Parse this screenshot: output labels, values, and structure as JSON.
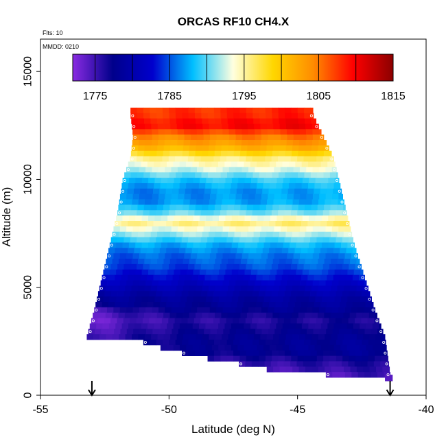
{
  "chart_data": {
    "type": "heatmap",
    "title": "ORCAS RF10 CH4.X",
    "xlabel": "Latitude (deg N)",
    "ylabel": "Altitude (m)",
    "xlim": [
      -55,
      -40
    ],
    "ylim": [
      0,
      16500
    ],
    "x_ticks": [
      -55,
      -50,
      -45,
      -40
    ],
    "y_ticks": [
      0,
      5000,
      10000,
      15000
    ],
    "annotations": {
      "flights": "Flts: 10",
      "date": "MMDD: 0210"
    },
    "colorbar": {
      "range": [
        1772,
        1815
      ],
      "tick_values": [
        1775,
        1785,
        1795,
        1805,
        1815
      ],
      "colors": [
        "#8a2be2",
        "#00008b",
        "#0000cd",
        "#00bfff",
        "#ffffe0",
        "#ffd700",
        "#ff8c00",
        "#ff0000",
        "#8b0000"
      ]
    },
    "flight_markers_latitude": [
      -53,
      -41.4
    ],
    "coverage": {
      "top_altitude": 13200,
      "bottom_altitude": 800,
      "left_edge": [
        [
          13000,
          -51.5
        ],
        [
          12000,
          -51.4
        ],
        [
          11000,
          -51.5
        ],
        [
          10000,
          -51.8
        ],
        [
          8500,
          -52.0
        ],
        [
          7000,
          -52.3
        ],
        [
          5500,
          -52.6
        ],
        [
          4000,
          -52.9
        ],
        [
          2700,
          -53.2
        ]
      ],
      "right_edge": [
        [
          13000,
          -44.4
        ],
        [
          12000,
          -44.0
        ],
        [
          11000,
          -43.6
        ],
        [
          10000,
          -43.4
        ],
        [
          8500,
          -43.1
        ],
        [
          7000,
          -42.8
        ],
        [
          5500,
          -42.4
        ],
        [
          4000,
          -42.0
        ],
        [
          2700,
          -41.6
        ],
        [
          1000,
          -41.4
        ]
      ],
      "bottom_left": [
        [
          2400,
          -51.0
        ],
        [
          1800,
          -49.0
        ],
        [
          1500,
          -47.5
        ],
        [
          1200,
          -46.2
        ],
        [
          1000,
          -44.2
        ],
        [
          800,
          -43.0
        ]
      ]
    },
    "ch4_profile": [
      {
        "altitude": 13000,
        "value": 1808
      },
      {
        "altitude": 12500,
        "value": 1810
      },
      {
        "altitude": 12000,
        "value": 1805
      },
      {
        "altitude": 11500,
        "value": 1802
      },
      {
        "altitude": 11000,
        "value": 1796
      },
      {
        "altitude": 10500,
        "value": 1793
      },
      {
        "altitude": 10000,
        "value": 1789
      },
      {
        "altitude": 9500,
        "value": 1787
      },
      {
        "altitude": 9000,
        "value": 1787
      },
      {
        "altitude": 8500,
        "value": 1790
      },
      {
        "altitude": 8000,
        "value": 1796
      },
      {
        "altitude": 7500,
        "value": 1792
      },
      {
        "altitude": 7000,
        "value": 1788
      },
      {
        "altitude": 6500,
        "value": 1786
      },
      {
        "altitude": 6000,
        "value": 1785
      },
      {
        "altitude": 5500,
        "value": 1783
      },
      {
        "altitude": 5000,
        "value": 1781
      },
      {
        "altitude": 4500,
        "value": 1779
      },
      {
        "altitude": 4000,
        "value": 1778
      },
      {
        "altitude": 3500,
        "value": 1776
      },
      {
        "altitude": 3000,
        "value": 1777
      },
      {
        "altitude": 2500,
        "value": 1778
      },
      {
        "altitude": 2000,
        "value": 1778
      },
      {
        "altitude": 1500,
        "value": 1776
      },
      {
        "altitude": 1000,
        "value": 1775
      }
    ]
  }
}
